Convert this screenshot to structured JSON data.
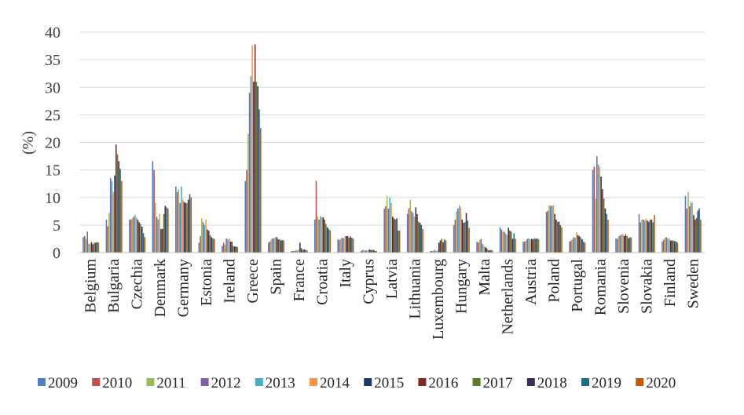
{
  "chart_data": {
    "type": "bar",
    "title": "",
    "xlabel": "",
    "ylabel": "(%)",
    "ylim": [
      0,
      40
    ],
    "yticks": [
      0,
      5,
      10,
      15,
      20,
      25,
      30,
      35,
      40
    ],
    "grid": true,
    "legend_position": "bottom",
    "categories": [
      "Belgium",
      "Bulgaria",
      "Czechia",
      "Denmark",
      "Germany",
      "Estonia",
      "Ireland",
      "Greece",
      "Spain",
      "France",
      "Croatia",
      "Italy",
      "Cyprus",
      "Latvia",
      "Lithuania",
      "Luxembourg",
      "Hungary",
      "Malta",
      "Netherlands",
      "Austria",
      "Poland",
      "Portugal",
      "Romania",
      "Slovenia",
      "Slovakia",
      "Finland",
      "Sweden"
    ],
    "series": [
      {
        "name": "2009",
        "color": "#4e81bd",
        "values": [
          2.8,
          6.0,
          6.0,
          16.6,
          12.0,
          1.8,
          1.2,
          13.0,
          1.8,
          0.3,
          6.0,
          2.4,
          0.3,
          8.0,
          7.0,
          0.3,
          5.0,
          2.0,
          4.6,
          2.0,
          7.4,
          2.0,
          15.0,
          2.6,
          7.0,
          2.0,
          10.3
        ]
      },
      {
        "name": "2010",
        "color": "#c0504d",
        "values": [
          3.0,
          4.8,
          6.0,
          15.0,
          11.0,
          3.0,
          1.8,
          15.0,
          2.0,
          0.3,
          13.0,
          2.3,
          0.5,
          8.4,
          8.0,
          0.3,
          6.0,
          1.8,
          4.2,
          2.0,
          7.6,
          2.2,
          15.6,
          2.5,
          5.5,
          2.3,
          8.0
        ]
      },
      {
        "name": "2011",
        "color": "#9bbb59",
        "values": [
          2.5,
          7.2,
          6.2,
          9.0,
          11.5,
          6.2,
          1.4,
          21.5,
          2.4,
          0.3,
          6.6,
          2.5,
          0.4,
          10.3,
          9.6,
          0.3,
          7.5,
          2.3,
          3.8,
          2.2,
          8.6,
          2.4,
          9.8,
          3.0,
          6.0,
          2.7,
          11.0
        ]
      },
      {
        "name": "2012",
        "color": "#8064a2",
        "values": [
          3.8,
          13.5,
          6.5,
          6.5,
          9.0,
          5.5,
          2.6,
          29.0,
          2.6,
          0.4,
          6.0,
          2.7,
          0.4,
          8.0,
          7.5,
          0.5,
          8.0,
          2.5,
          3.8,
          2.5,
          8.5,
          2.8,
          17.5,
          3.1,
          6.0,
          2.8,
          8.4
        ]
      },
      {
        "name": "2013",
        "color": "#4bacc6",
        "values": [
          1.6,
          13.0,
          6.8,
          6.0,
          12.0,
          5.0,
          2.4,
          32.0,
          2.6,
          0.4,
          6.6,
          2.6,
          0.4,
          10.0,
          7.2,
          0.3,
          8.6,
          1.6,
          3.5,
          2.6,
          8.5,
          2.7,
          16.0,
          3.3,
          5.8,
          2.5,
          9.2
        ]
      },
      {
        "name": "2014",
        "color": "#f79646",
        "values": [
          1.6,
          11.0,
          6.4,
          7.0,
          9.6,
          6.0,
          2.6,
          37.6,
          2.8,
          0.6,
          6.4,
          3.0,
          0.4,
          9.0,
          6.5,
          0.5,
          8.2,
          1.3,
          3.2,
          2.4,
          8.6,
          3.7,
          15.6,
          3.4,
          6.2,
          2.6,
          9.0
        ]
      },
      {
        "name": "2015",
        "color": "#1f3864",
        "values": [
          1.9,
          14.0,
          6.0,
          4.3,
          9.2,
          4.2,
          2.0,
          31.0,
          2.8,
          1.8,
          6.4,
          3.0,
          0.6,
          6.5,
          8.2,
          1.8,
          6.0,
          1.0,
          4.5,
          2.5,
          7.0,
          3.2,
          13.8,
          3.0,
          5.8,
          2.2,
          6.8
        ]
      },
      {
        "name": "2016",
        "color": "#7b2c26",
        "values": [
          1.5,
          19.6,
          5.5,
          4.3,
          9.0,
          4.0,
          2.0,
          37.8,
          2.4,
          0.8,
          6.0,
          3.0,
          0.5,
          6.2,
          7.0,
          2.2,
          5.4,
          0.8,
          4.0,
          2.4,
          6.0,
          3.0,
          11.5,
          3.3,
          5.6,
          2.2,
          6.0
        ]
      },
      {
        "name": "2017",
        "color": "#5e7a2f",
        "values": [
          1.8,
          17.8,
          5.2,
          7.0,
          9.0,
          3.2,
          1.2,
          31.0,
          2.4,
          0.5,
          5.2,
          2.7,
          0.5,
          6.0,
          5.6,
          2.5,
          5.5,
          0.5,
          3.8,
          2.6,
          5.6,
          2.8,
          9.8,
          3.0,
          6.0,
          2.2,
          6.3
        ]
      },
      {
        "name": "2018",
        "color": "#3b2e57",
        "values": [
          1.8,
          16.6,
          4.7,
          8.5,
          9.6,
          2.8,
          1.1,
          30.2,
          2.2,
          0.6,
          4.6,
          2.9,
          0.5,
          6.2,
          5.4,
          1.9,
          7.2,
          0.4,
          2.5,
          2.5,
          5.6,
          2.4,
          8.0,
          2.6,
          6.0,
          2.1,
          7.6
        ]
      },
      {
        "name": "2019",
        "color": "#1f6f80",
        "values": [
          1.9,
          15.2,
          3.5,
          8.2,
          10.6,
          2.6,
          1.1,
          26.0,
          2.3,
          0.5,
          4.3,
          2.7,
          0.3,
          4.0,
          5.0,
          2.4,
          5.8,
          0.5,
          3.5,
          2.6,
          5.0,
          2.0,
          7.0,
          2.8,
          5.5,
          2.0,
          8.0
        ]
      },
      {
        "name": "2020",
        "color": "#c05a08",
        "values": [
          1.8,
          13.0,
          2.8,
          8.0,
          10.0,
          2.5,
          1.0,
          22.6,
          2.2,
          0.4,
          4.0,
          2.5,
          0.3,
          4.0,
          4.3,
          2.2,
          4.5,
          0.4,
          2.5,
          2.4,
          4.6,
          1.8,
          6.0,
          2.7,
          6.8,
          1.8,
          6.0
        ]
      }
    ]
  }
}
